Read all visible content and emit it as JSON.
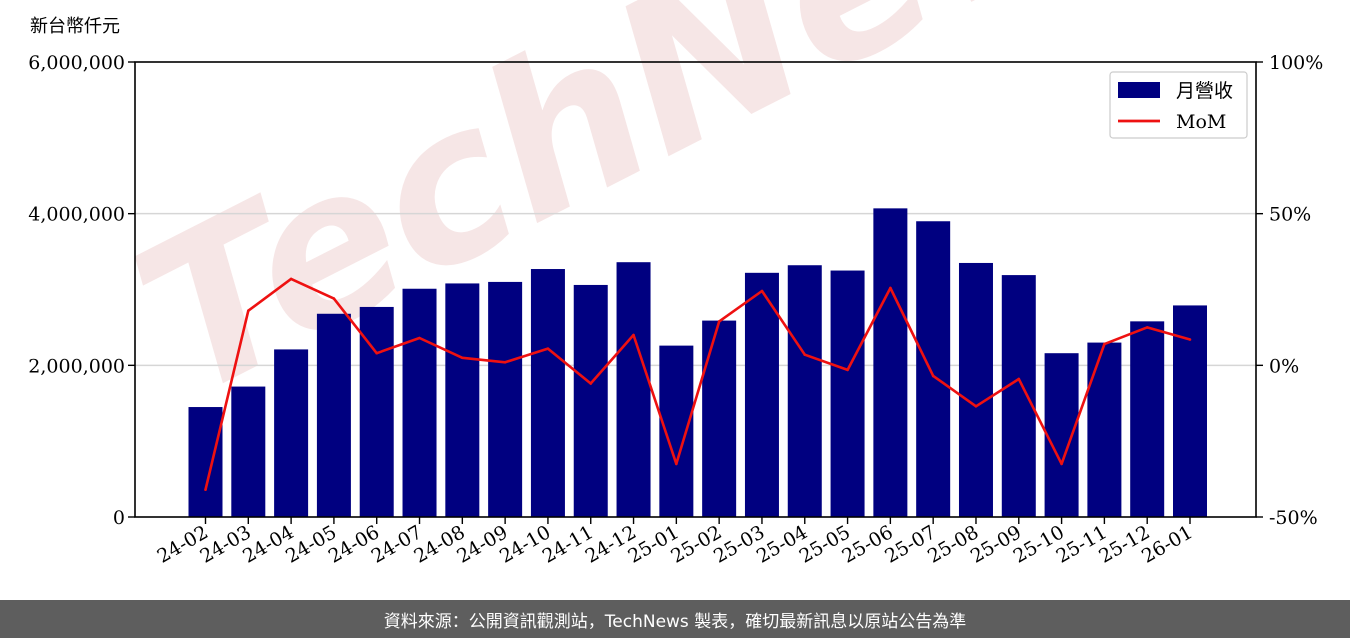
{
  "chart_data": {
    "type": "bar",
    "unit_label": "新台幣仟元",
    "watermark": "TechNews",
    "categories": [
      "24-02",
      "24-03",
      "24-04",
      "24-05",
      "24-06",
      "24-07",
      "24-08",
      "24-09",
      "24-10",
      "24-11",
      "24-12",
      "25-01",
      "25-02",
      "25-03",
      "25-04",
      "25-05",
      "25-06",
      "25-07",
      "25-08",
      "25-09",
      "25-10",
      "25-11",
      "25-12",
      "26-01"
    ],
    "series": [
      {
        "name": "月營收",
        "type": "bar",
        "axis": "left",
        "color": "#000080",
        "values": [
          1450000,
          1720000,
          2210000,
          2680000,
          2770000,
          3010000,
          3080000,
          3100000,
          3270000,
          3060000,
          3360000,
          2260000,
          2590000,
          3220000,
          3320000,
          3250000,
          4070000,
          3900000,
          3350000,
          3190000,
          2160000,
          2300000,
          2580000,
          2790000
        ]
      },
      {
        "name": "MoM",
        "type": "line",
        "axis": "right",
        "color": "#ee1111",
        "values": [
          -41,
          18,
          28.5,
          22,
          4,
          9,
          2.5,
          1,
          5.5,
          -6,
          10,
          -32.5,
          14.5,
          24.5,
          3.5,
          -1.5,
          25.5,
          -3.5,
          -13.5,
          -4.5,
          -32.5,
          7,
          12.5,
          8.5
        ]
      }
    ],
    "y_left": {
      "min": 0,
      "max": 6000000,
      "ticks": [
        "0",
        "2,000,000",
        "4,000,000",
        "6,000,000"
      ],
      "tick_values": [
        0,
        2000000,
        4000000,
        6000000
      ]
    },
    "y_right": {
      "min": -50,
      "max": 100,
      "ticks": [
        "-50%",
        "0%",
        "50%",
        "100%"
      ],
      "tick_values": [
        -50,
        0,
        50,
        100
      ]
    },
    "grid": "horizontal",
    "legend_position": "top-right",
    "legend": [
      {
        "label": "月營收",
        "swatch": "bar",
        "color": "#000080"
      },
      {
        "label": "MoM",
        "swatch": "line",
        "color": "#ee1111"
      }
    ]
  },
  "footer": {
    "source_text": "資料來源：公開資訊觀測站，TechNews 製表，確切最新訊息以原站公告為準"
  }
}
